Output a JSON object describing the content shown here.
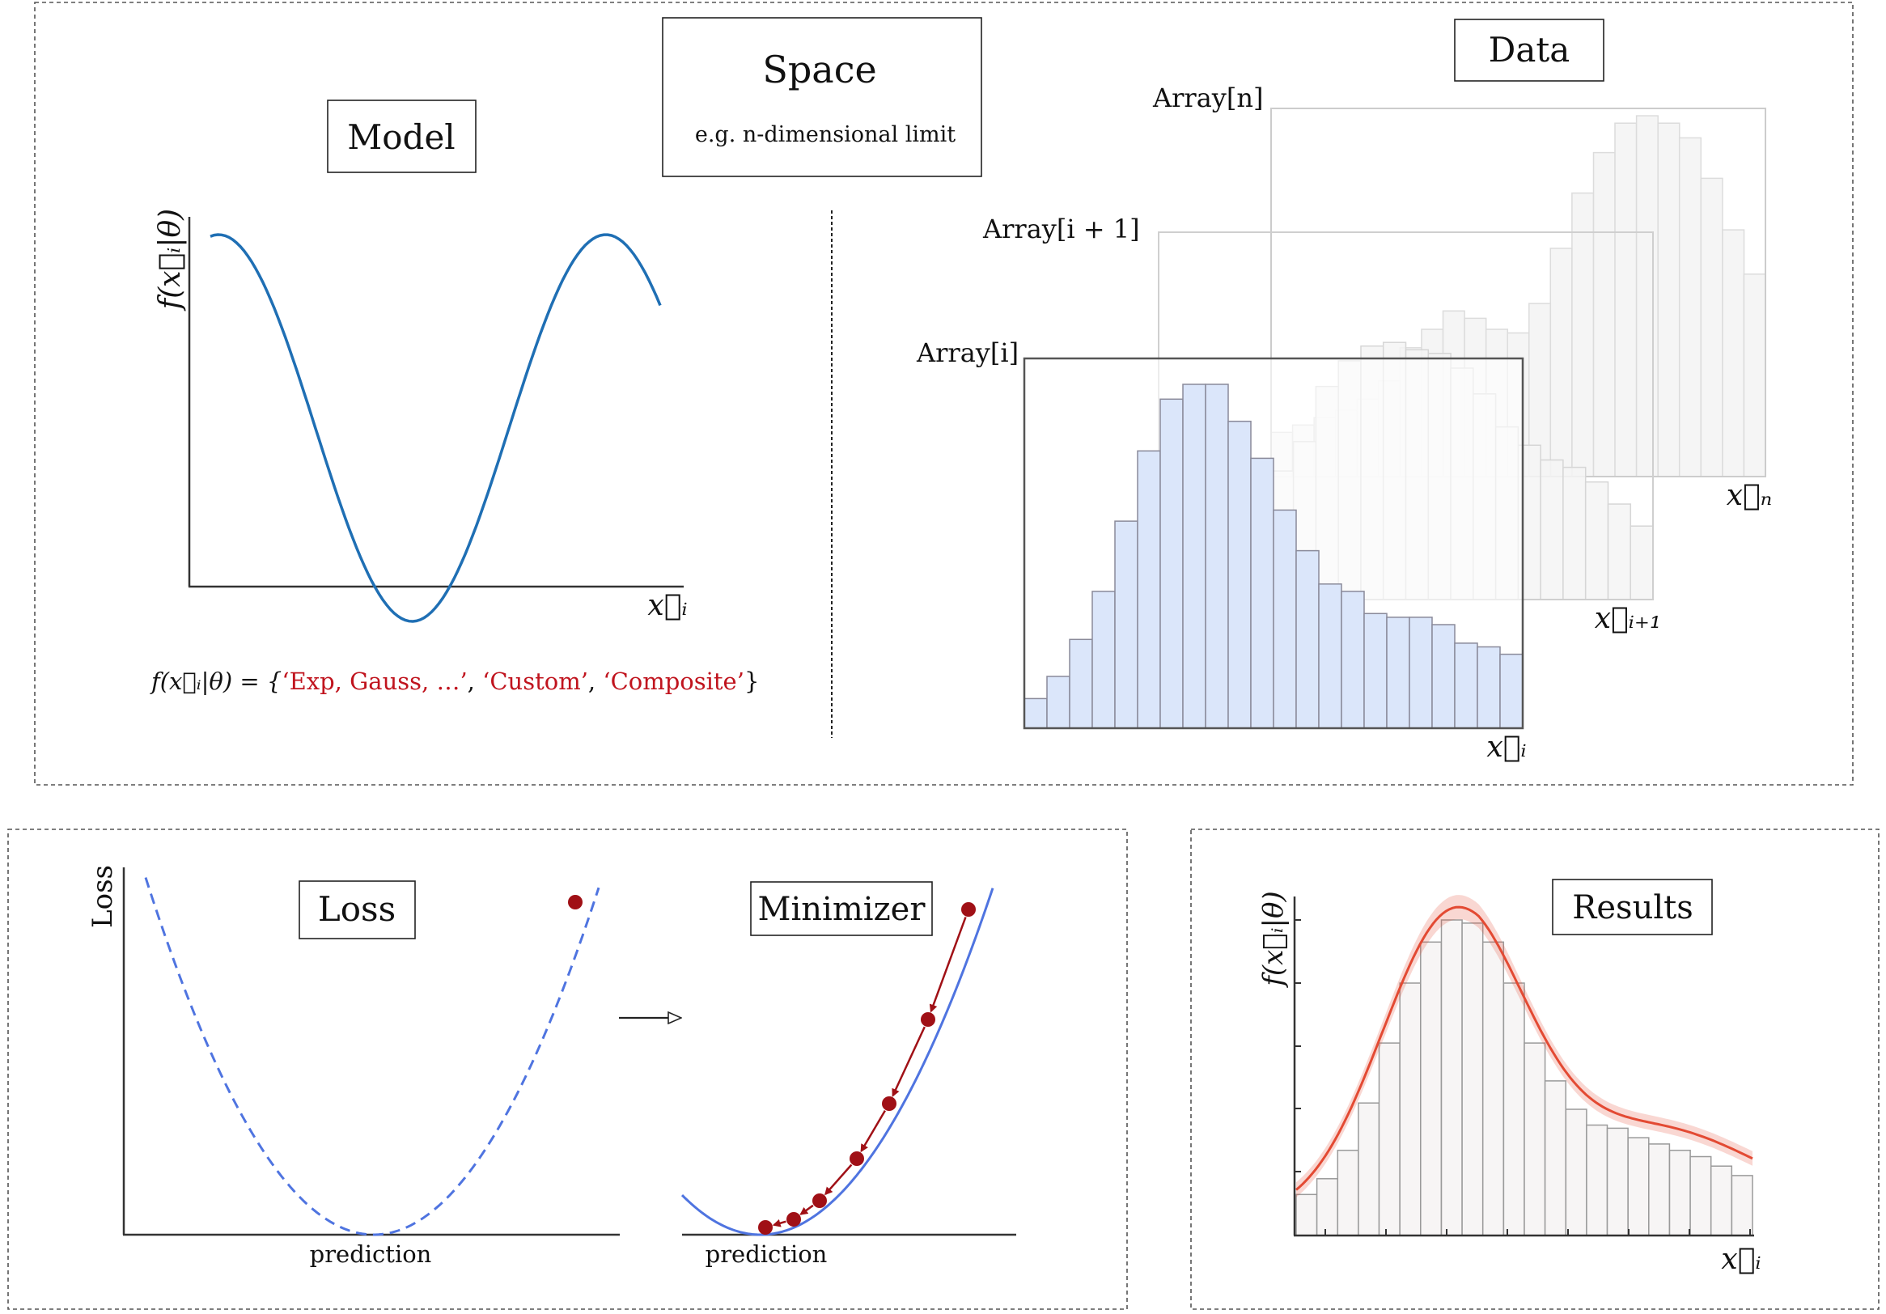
{
  "model": {
    "title": "Model",
    "y_label": "f(x⃗ᵢ|θ)",
    "x_label": "x⃗ᵢ",
    "formula_prefix": "f(x⃗ᵢ|θ) = {",
    "formula_options": [
      "‘Exp, Gauss, …’",
      "‘Custom’",
      "‘Composite’"
    ],
    "formula_separator": ", ",
    "formula_suffix": "}",
    "option_color": "#c0141e"
  },
  "space": {
    "title": "Space",
    "subtitle": "e.g. n-dimensional limit"
  },
  "data": {
    "title": "Data",
    "arrays": [
      {
        "label": "Array[n]",
        "axis": "x⃗ₙ"
      },
      {
        "label": "Array[i + 1]",
        "axis": "x⃗ᵢ₊₁"
      },
      {
        "label": "Array[i]",
        "axis": "x⃗ᵢ"
      }
    ],
    "bar_color": "#dbe6fa"
  },
  "loss": {
    "title": "Loss",
    "y_label": "Loss",
    "x_label": "prediction"
  },
  "minimizer": {
    "title": "Minimizer",
    "x_label": "prediction"
  },
  "results": {
    "title": "Results",
    "y_label": "f(x⃗ᵢ|θ)",
    "x_label": "x⃗ᵢ",
    "fit_color": "#e34a33"
  },
  "colors": {
    "model_curve": "#1f6fb4",
    "loss_curve": "#4f74e0",
    "minimizer_points": "#a01016"
  },
  "chart_data": [
    {
      "type": "bar",
      "title": "Array[i]",
      "xlabel": "x⃗ᵢ",
      "values": [
        0.08,
        0.14,
        0.24,
        0.37,
        0.56,
        0.75,
        0.89,
        0.93,
        0.93,
        0.83,
        0.73,
        0.59,
        0.48,
        0.39,
        0.37,
        0.31,
        0.3,
        0.3,
        0.28,
        0.23,
        0.22,
        0.2
      ]
    },
    {
      "type": "bar",
      "title": "Results",
      "xlabel": "x⃗ᵢ",
      "ylabel": "f(x⃗ᵢ|θ)",
      "values": [
        0.13,
        0.18,
        0.27,
        0.42,
        0.61,
        0.8,
        0.93,
        1.0,
        0.99,
        0.93,
        0.8,
        0.61,
        0.49,
        0.4,
        0.35,
        0.34,
        0.31,
        0.29,
        0.27,
        0.25,
        0.22,
        0.19
      ]
    }
  ]
}
